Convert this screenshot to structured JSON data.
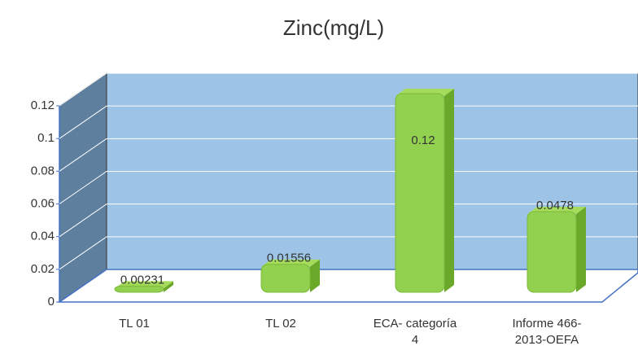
{
  "chart_data": {
    "type": "bar3d",
    "title": "Zinc(mg/L)",
    "categories": [
      "TL 01",
      "TL 02",
      "ECA- categoría 4",
      "Informe 466-2013-OEFA"
    ],
    "values": [
      0.00231,
      0.01556,
      0.12,
      0.0478
    ],
    "color": "#92d050",
    "ylim": [
      0,
      0.12
    ],
    "yticks": [
      0,
      0.02,
      0.04,
      0.06,
      0.08,
      0.1,
      0.12
    ],
    "grid": true
  }
}
